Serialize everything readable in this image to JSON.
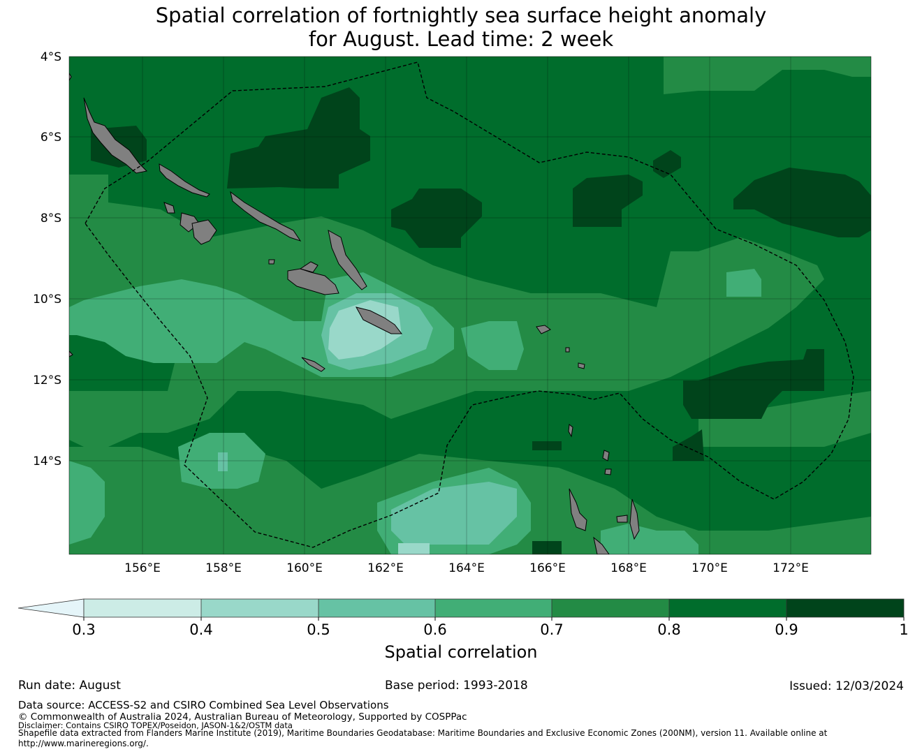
{
  "title_line1": "Spatial correlation of fortnightly sea surface height anomaly",
  "title_line2": "for August. Lead time: 2 week",
  "map": {
    "lat_labels": [
      "4°S",
      "6°S",
      "8°S",
      "10°S",
      "12°S",
      "14°S"
    ],
    "lon_labels": [
      "156°E",
      "158°E",
      "160°E",
      "162°E",
      "164°E",
      "166°E",
      "168°E",
      "170°E",
      "172°E"
    ],
    "land_color": "#808080",
    "eez_boundary_style": "dashed black"
  },
  "colorbar": {
    "label": "Spatial correlation",
    "ticks": [
      "0.3",
      "0.4",
      "0.5",
      "0.6",
      "0.7",
      "0.8",
      "0.9",
      "1"
    ],
    "under_color": "#e5f5f9",
    "colors": [
      "#ccece6",
      "#99d8c9",
      "#66c2a4",
      "#41ae76",
      "#238b45",
      "#006d2c",
      "#00441b"
    ]
  },
  "footer": {
    "run_date": "Run date: August",
    "base_period": "Base period: 1993-2018",
    "issued": "Issued: 12/03/2024",
    "data_source": "Data source: ACCESS-S2 and CSIRO Combined Sea Level Observations",
    "copyright": "© Commonwealth of Australia 2024, Australian Bureau of Meteorology, Supported by COSPPac",
    "disclaimer": "Disclaimer: Contains CSIRO TOPEX/Poseidon, JASON-1&2/OSTM data",
    "shapefile_line1": "Shapefile data extracted from Flanders Marine Institute (2019), Maritime Boundaries Geodatabase: Maritime Boundaries and Exclusive Economic Zones (200NM), version 11. Available online at",
    "shapefile_line2": "http://www.marineregions.org/."
  }
}
